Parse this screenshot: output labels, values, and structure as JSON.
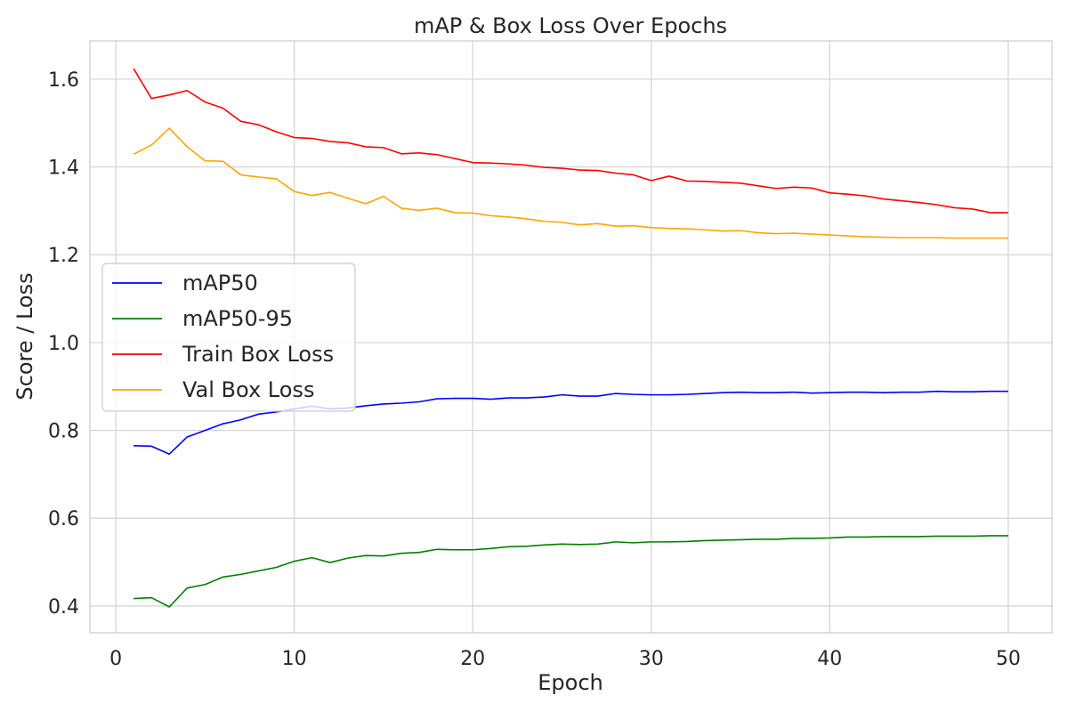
{
  "chart_data": {
    "type": "line",
    "title": "mAP & Box Loss Over Epochs",
    "xlabel": "Epoch",
    "ylabel": "Score / Loss",
    "xlim": [
      -1.45,
      52.45
    ],
    "ylim": [
      0.339,
      1.687
    ],
    "xticks": [
      0,
      10,
      20,
      30,
      40,
      50
    ],
    "yticks": [
      0.4,
      0.6,
      0.8,
      1.0,
      1.2,
      1.4,
      1.6
    ],
    "ytick_labels": [
      "0.4",
      "0.6",
      "0.8",
      "1.0",
      "1.2",
      "1.4",
      "1.6"
    ],
    "grid": true,
    "legend_position": "center-left",
    "x": [
      1,
      2,
      3,
      4,
      5,
      6,
      7,
      8,
      9,
      10,
      11,
      12,
      13,
      14,
      15,
      16,
      17,
      18,
      19,
      20,
      21,
      22,
      23,
      24,
      25,
      26,
      27,
      28,
      29,
      30,
      31,
      32,
      33,
      34,
      35,
      36,
      37,
      38,
      39,
      40,
      41,
      42,
      43,
      44,
      45,
      46,
      47,
      48,
      49,
      50
    ],
    "series": [
      {
        "name": "mAP50",
        "color": "#0000ff",
        "values": [
          0.765,
          0.764,
          0.746,
          0.785,
          0.8,
          0.815,
          0.824,
          0.837,
          0.842,
          0.849,
          0.855,
          0.849,
          0.851,
          0.856,
          0.86,
          0.862,
          0.865,
          0.872,
          0.873,
          0.873,
          0.871,
          0.874,
          0.874,
          0.876,
          0.881,
          0.878,
          0.878,
          0.884,
          0.882,
          0.881,
          0.881,
          0.882,
          0.884,
          0.886,
          0.887,
          0.886,
          0.886,
          0.887,
          0.885,
          0.886,
          0.887,
          0.887,
          0.886,
          0.887,
          0.887,
          0.889,
          0.888,
          0.888,
          0.889,
          0.889
        ]
      },
      {
        "name": "mAP50-95",
        "color": "#008000",
        "values": [
          0.417,
          0.419,
          0.398,
          0.441,
          0.449,
          0.466,
          0.472,
          0.48,
          0.488,
          0.502,
          0.51,
          0.499,
          0.509,
          0.515,
          0.514,
          0.52,
          0.522,
          0.529,
          0.528,
          0.528,
          0.531,
          0.535,
          0.536,
          0.539,
          0.541,
          0.54,
          0.541,
          0.546,
          0.544,
          0.546,
          0.546,
          0.547,
          0.549,
          0.55,
          0.551,
          0.552,
          0.552,
          0.554,
          0.554,
          0.555,
          0.557,
          0.557,
          0.558,
          0.558,
          0.558,
          0.559,
          0.559,
          0.559,
          0.56,
          0.56
        ]
      },
      {
        "name": "Train Box Loss",
        "color": "#ff0000",
        "values": [
          1.624,
          1.556,
          1.564,
          1.574,
          1.548,
          1.534,
          1.504,
          1.496,
          1.48,
          1.467,
          1.465,
          1.458,
          1.455,
          1.446,
          1.444,
          1.43,
          1.432,
          1.428,
          1.419,
          1.41,
          1.409,
          1.407,
          1.404,
          1.399,
          1.397,
          1.393,
          1.392,
          1.386,
          1.382,
          1.369,
          1.379,
          1.368,
          1.367,
          1.365,
          1.363,
          1.357,
          1.351,
          1.354,
          1.352,
          1.341,
          1.338,
          1.334,
          1.327,
          1.323,
          1.319,
          1.314,
          1.307,
          1.304,
          1.296,
          1.296
        ]
      },
      {
        "name": "Val Box Loss",
        "color": "#ffa500",
        "values": [
          1.429,
          1.45,
          1.488,
          1.446,
          1.414,
          1.413,
          1.382,
          1.377,
          1.373,
          1.344,
          1.335,
          1.342,
          1.329,
          1.316,
          1.333,
          1.306,
          1.301,
          1.306,
          1.296,
          1.295,
          1.289,
          1.286,
          1.282,
          1.276,
          1.274,
          1.268,
          1.271,
          1.265,
          1.266,
          1.262,
          1.26,
          1.259,
          1.257,
          1.254,
          1.255,
          1.25,
          1.248,
          1.249,
          1.247,
          1.245,
          1.243,
          1.241,
          1.24,
          1.239,
          1.239,
          1.239,
          1.238,
          1.238,
          1.238,
          1.238
        ]
      }
    ]
  }
}
